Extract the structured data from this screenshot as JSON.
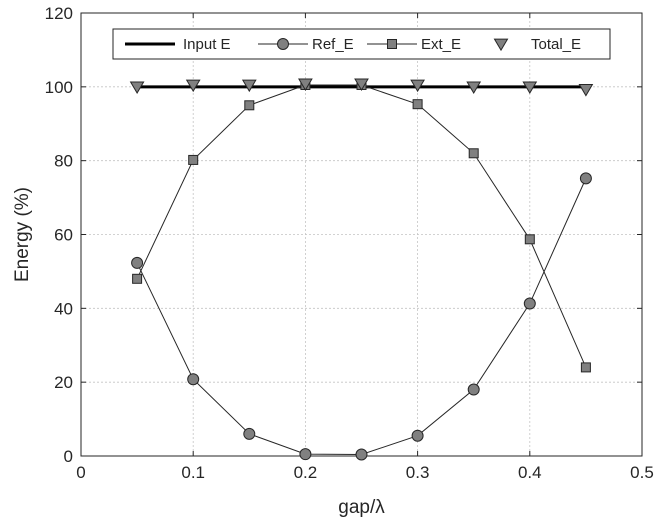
{
  "chart_data": {
    "type": "line",
    "title": "",
    "xlabel": "gap/λ",
    "ylabel": "Energy (%)",
    "xlim": [
      0,
      0.5
    ],
    "ylim": [
      0,
      120
    ],
    "xticks": [
      0,
      0.1,
      0.2,
      0.3,
      0.4,
      0.5
    ],
    "xtick_labels": [
      "0",
      "0.1",
      "0.2",
      "0.3",
      "0.4",
      "0.5"
    ],
    "yticks": [
      0,
      20,
      40,
      60,
      80,
      100,
      120
    ],
    "ytick_labels": [
      "0",
      "20",
      "40",
      "60",
      "80",
      "100",
      "120"
    ],
    "grid": true,
    "legend_position": "top, horizontal",
    "series": [
      {
        "name": "Input E",
        "style": "thick-line",
        "color": "#000000",
        "x": [
          0.05,
          0.45
        ],
        "y": [
          100,
          100
        ]
      },
      {
        "name": "Ref_E",
        "style": "line-circle",
        "color": "#808080",
        "x": [
          0.05,
          0.1,
          0.15,
          0.2,
          0.25,
          0.3,
          0.35,
          0.4,
          0.45
        ],
        "y": [
          52.3,
          20.8,
          6.0,
          0.5,
          0.4,
          5.5,
          18.0,
          41.3,
          75.2
        ]
      },
      {
        "name": "Ext_E",
        "style": "line-square",
        "color": "#808080",
        "x": [
          0.05,
          0.1,
          0.15,
          0.2,
          0.25,
          0.3,
          0.35,
          0.4,
          0.45
        ],
        "y": [
          48.0,
          80.2,
          95.0,
          100.5,
          100.5,
          95.3,
          82.0,
          58.7,
          24.0
        ]
      },
      {
        "name": "Total_E",
        "style": "triangle-down-markers",
        "color": "#808080",
        "x": [
          0.05,
          0.1,
          0.15,
          0.2,
          0.25,
          0.3,
          0.35,
          0.4,
          0.45
        ],
        "y": [
          100.0,
          100.5,
          100.5,
          100.8,
          100.8,
          100.5,
          100.0,
          100.0,
          99.3
        ]
      }
    ]
  }
}
